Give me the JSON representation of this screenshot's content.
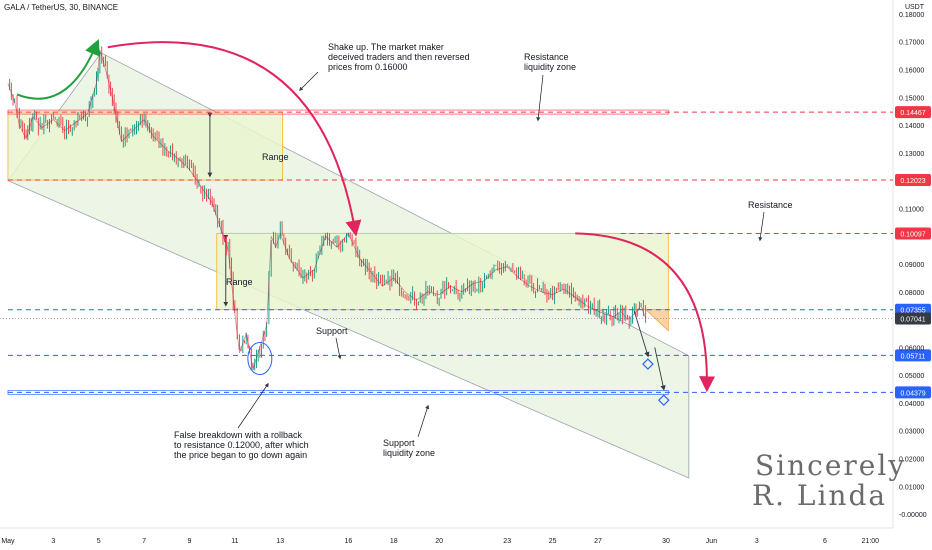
{
  "header": {
    "title": "GALA / TetherUS, 30, BINANCE",
    "unit": "USDT"
  },
  "chart_data": {
    "type": "line",
    "title": "GALA / TetherUS, 30, BINANCE",
    "ylabel": "USDT",
    "ylim": [
      -0.005,
      0.185
    ],
    "y_ticks": [
      "0.18000",
      "0.17000",
      "0.16000",
      "0.15000",
      "0.14000",
      "0.13000",
      "0.12000",
      "0.11000",
      "0.10000",
      "0.09000",
      "0.08000",
      "0.07000",
      "0.06000",
      "0.05000",
      "0.04000",
      "0.03000",
      "0.02000",
      "0.01000",
      "-0.00000"
    ],
    "x_ticks": [
      {
        "label": "May",
        "day": 1
      },
      {
        "label": "3",
        "day": 3
      },
      {
        "label": "5",
        "day": 5
      },
      {
        "label": "7",
        "day": 7
      },
      {
        "label": "9",
        "day": 9
      },
      {
        "label": "11",
        "day": 11
      },
      {
        "label": "13",
        "day": 13
      },
      {
        "label": "16",
        "day": 16
      },
      {
        "label": "18",
        "day": 18
      },
      {
        "label": "20",
        "day": 20
      },
      {
        "label": "23",
        "day": 23
      },
      {
        "label": "25",
        "day": 25
      },
      {
        "label": "27",
        "day": 27
      },
      {
        "label": "30",
        "day": 30
      },
      {
        "label": "Jun",
        "day": 32
      },
      {
        "label": "3",
        "day": 34
      },
      {
        "label": "6",
        "day": 37
      },
      {
        "label": "21:00",
        "day": 39
      }
    ],
    "price_series": {
      "day": [
        1.0,
        1.3,
        1.5,
        1.8,
        2.1,
        2.5,
        3.0,
        3.5,
        4.0,
        4.5,
        4.9,
        5.05,
        5.3,
        5.6,
        6.0,
        6.5,
        7.0,
        7.4,
        8.0,
        8.5,
        9.0,
        9.5,
        10.0,
        10.4,
        10.7,
        11.0,
        11.2,
        11.5,
        11.8,
        12.1,
        12.4,
        12.6,
        12.8,
        13.0,
        13.4,
        14.0,
        14.5,
        15.0,
        15.5,
        16.0,
        16.5,
        17.0,
        17.5,
        18.0,
        18.5,
        19.0,
        19.5,
        20.0,
        20.5,
        21.0,
        21.5,
        22.0,
        22.5,
        23.0,
        23.5,
        24.0,
        24.5,
        25.0,
        25.5,
        26.0,
        26.5,
        27.0,
        27.3,
        27.7,
        28.0,
        28.3,
        28.6,
        28.9,
        29.1
      ],
      "price": [
        0.155,
        0.148,
        0.14,
        0.135,
        0.143,
        0.139,
        0.142,
        0.138,
        0.141,
        0.144,
        0.155,
        0.167,
        0.16,
        0.15,
        0.134,
        0.138,
        0.142,
        0.136,
        0.131,
        0.128,
        0.124,
        0.118,
        0.112,
        0.102,
        0.095,
        0.072,
        0.058,
        0.065,
        0.052,
        0.06,
        0.068,
        0.1,
        0.096,
        0.101,
        0.092,
        0.085,
        0.088,
        0.1,
        0.096,
        0.101,
        0.092,
        0.087,
        0.082,
        0.085,
        0.08,
        0.077,
        0.08,
        0.079,
        0.082,
        0.08,
        0.083,
        0.084,
        0.088,
        0.089,
        0.085,
        0.082,
        0.08,
        0.079,
        0.081,
        0.078,
        0.075,
        0.073,
        0.072,
        0.071,
        0.073,
        0.07,
        0.072,
        0.075,
        0.0704
      ]
    },
    "levels": [
      {
        "value": 0.14467,
        "label": "0.14467",
        "color": "#f23645",
        "style": "dashed",
        "start_day": 1.0
      },
      {
        "value": 0.12023,
        "label": "0.12023",
        "color": "#f23645",
        "style": "dashed",
        "start_day": 1.0
      },
      {
        "value": 0.10097,
        "label": "0.10097",
        "color": "#f23645",
        "style": "dashed",
        "start_day": 28.0
      },
      {
        "value": 0.07355,
        "label": "0.07355",
        "color": "#2962ff",
        "style": "dashed",
        "start_day": 1.0
      },
      {
        "value": 0.05711,
        "label": "0.05711",
        "color": "#2962ff",
        "style": "dashed",
        "start_day": 1.0
      },
      {
        "value": 0.04379,
        "label": "0.04379",
        "color": "#2962ff",
        "style": "dashed",
        "start_day": 1.0
      }
    ],
    "current_price": {
      "value": 0.07041,
      "label": "0.07041",
      "color": "#363a45"
    },
    "zones": [
      {
        "name": "Range",
        "x0": 1.0,
        "x1": 13.1,
        "y0": 0.1202,
        "y1": 0.1447,
        "fill": "#eaf5cf",
        "stroke": "#f5c242"
      },
      {
        "name": "Range",
        "x0": 10.2,
        "x1": 30.1,
        "y0": 0.0736,
        "y1": 0.101,
        "fill": "#eaf5cf",
        "stroke": "#f5c242"
      }
    ],
    "channel": {
      "upper": [
        [
          5.1,
          0.166
        ],
        [
          31.0,
          0.057
        ]
      ],
      "lower": [
        [
          1.0,
          0.12
        ],
        [
          31.0,
          0.013
        ]
      ],
      "fill": "#e6f2dd"
    },
    "annotations": [
      {
        "text": "Shake up. The market maker\ndeceived traders and then reversed\nprices from 0.16000",
        "key": "shake"
      },
      {
        "text": "Resistance\nliquidity zone",
        "key": "res_liq"
      },
      {
        "text": "Resistance",
        "key": "res"
      },
      {
        "text": "Range",
        "key": "range1"
      },
      {
        "text": "Range",
        "key": "range2"
      },
      {
        "text": "Support",
        "key": "support"
      },
      {
        "text": "False breakdown with a rollback\nto resistance 0.12000, after which\nthe price began to go down again",
        "key": "false_bd"
      },
      {
        "text": "Support\nliquidity zone",
        "key": "sup_liq"
      }
    ],
    "colors": {
      "up": "#089981",
      "down": "#f23645",
      "price_line": "#a8163a",
      "green_arrow": "#22a03c",
      "red_arrow": "#e0245e"
    },
    "grid": false,
    "legend": "none"
  },
  "annotations_text": {
    "shake": "Shake up. The market maker\ndeceived traders and then reversed\nprices from 0.16000",
    "res_liq": "Resistance\nliquidity zone",
    "res": "Resistance",
    "range1": "Range",
    "range2": "Range",
    "support": "Support",
    "false_bd": "False breakdown with a rollback\nto resistance 0.12000, after which\nthe price began to go down again",
    "sup_liq": "Support\nliquidity zone"
  },
  "signature": {
    "line1": "Sincerely",
    "line2": "R. Linda"
  }
}
